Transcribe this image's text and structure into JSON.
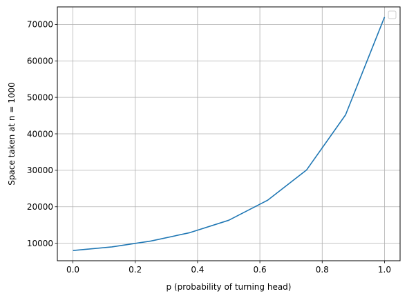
{
  "chart_data": {
    "type": "line",
    "title": "",
    "xlabel": "p (probability of turning head)",
    "ylabel": "Space taken at n = 1000",
    "xlim": [
      -0.05,
      1.05
    ],
    "ylim": [
      5200,
      74800
    ],
    "xticks": [
      0.0,
      0.2,
      0.4,
      0.6,
      0.8,
      1.0
    ],
    "xtick_labels": [
      "0.0",
      "0.2",
      "0.4",
      "0.6",
      "0.8",
      "1.0"
    ],
    "yticks": [
      10000,
      20000,
      30000,
      40000,
      50000,
      60000,
      70000
    ],
    "ytick_labels": [
      "10000",
      "20000",
      "30000",
      "40000",
      "50000",
      "60000",
      "70000"
    ],
    "grid": true,
    "legend": "top-right (empty)",
    "series": [
      {
        "color": "#1f77b4",
        "x": [
          0.0,
          0.125,
          0.25,
          0.375,
          0.5,
          0.625,
          0.75,
          0.875,
          1.0
        ],
        "y": [
          8000,
          9000,
          10600,
          12900,
          16300,
          21800,
          30100,
          45200,
          72000
        ]
      }
    ]
  }
}
